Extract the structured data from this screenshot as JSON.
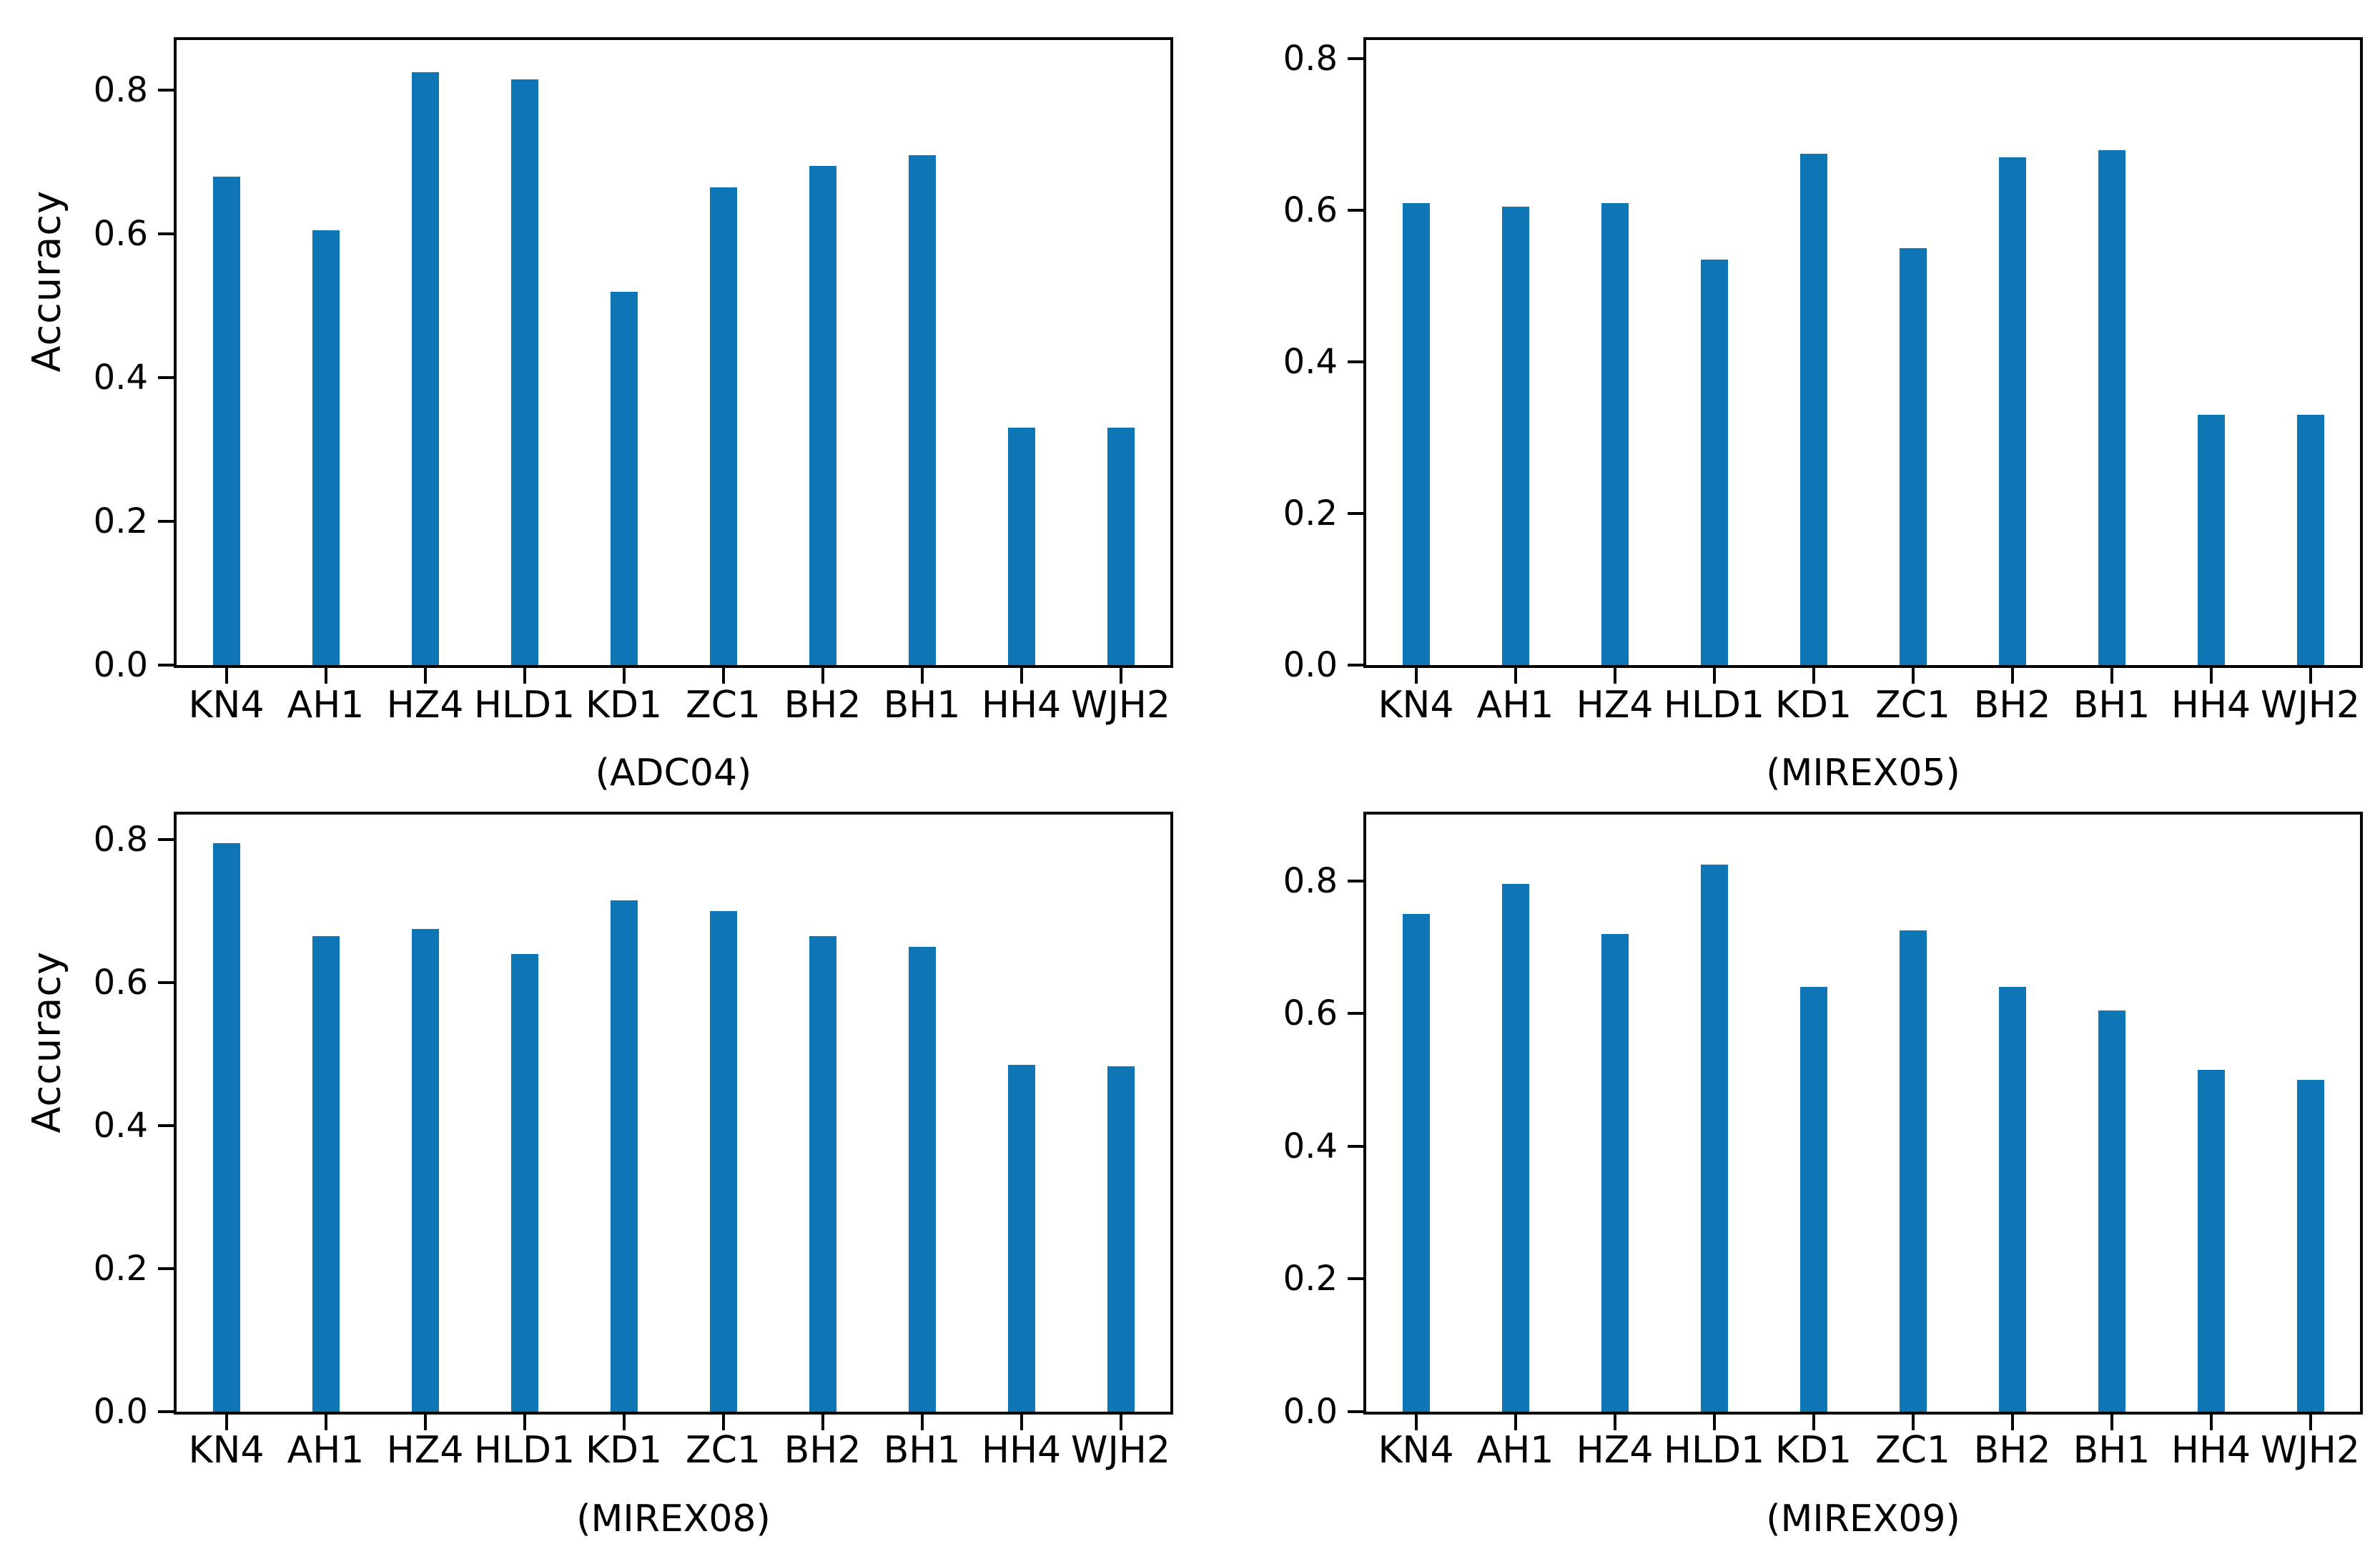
{
  "figure": {
    "background": "#ffffff",
    "bar_color": "#0e76b4",
    "axis_color": "#000000",
    "text_color": "#000000",
    "layout": "2x2 grid of bar subplots",
    "ylabel_left_column_only": "Accuracy"
  },
  "chart_data": [
    {
      "type": "bar",
      "title": "(ADC04)",
      "ylabel": "Accuracy",
      "xlabel": "",
      "categories": [
        "KN4",
        "AH1",
        "HZ4",
        "HLD1",
        "KD1",
        "ZC1",
        "BH2",
        "BH1",
        "HH4",
        "WJH2"
      ],
      "values": [
        0.68,
        0.605,
        0.825,
        0.815,
        0.52,
        0.665,
        0.695,
        0.71,
        0.33,
        0.33
      ],
      "ylim": [
        0,
        0.87
      ],
      "yticks": [
        0.0,
        0.2,
        0.4,
        0.6,
        0.8
      ],
      "ytick_labels": [
        "0.0",
        "0.2",
        "0.4",
        "0.6",
        "0.8"
      ],
      "grid": false,
      "legend": "none"
    },
    {
      "type": "bar",
      "title": "(MIREX05)",
      "ylabel": "",
      "xlabel": "",
      "categories": [
        "KN4",
        "AH1",
        "HZ4",
        "HLD1",
        "KD1",
        "ZC1",
        "BH2",
        "BH1",
        "HH4",
        "WJH2"
      ],
      "values": [
        0.61,
        0.605,
        0.61,
        0.535,
        0.675,
        0.55,
        0.67,
        0.68,
        0.33,
        0.33
      ],
      "ylim": [
        0,
        0.825
      ],
      "yticks": [
        0.0,
        0.2,
        0.4,
        0.6,
        0.8
      ],
      "ytick_labels": [
        "0.0",
        "0.2",
        "0.4",
        "0.6",
        "0.8"
      ],
      "grid": false,
      "legend": "none"
    },
    {
      "type": "bar",
      "title": "(MIREX08)",
      "ylabel": "Accuracy",
      "xlabel": "",
      "categories": [
        "KN4",
        "AH1",
        "HZ4",
        "HLD1",
        "KD1",
        "ZC1",
        "BH2",
        "BH1",
        "HH4",
        "WJH2"
      ],
      "values": [
        0.795,
        0.665,
        0.675,
        0.64,
        0.715,
        0.7,
        0.665,
        0.65,
        0.485,
        0.483
      ],
      "ylim": [
        0,
        0.835
      ],
      "yticks": [
        0.0,
        0.2,
        0.4,
        0.6,
        0.8
      ],
      "ytick_labels": [
        "0.0",
        "0.2",
        "0.4",
        "0.6",
        "0.8"
      ],
      "grid": false,
      "legend": "none"
    },
    {
      "type": "bar",
      "title": "(MIREX09)",
      "ylabel": "",
      "xlabel": "",
      "categories": [
        "KN4",
        "AH1",
        "HZ4",
        "HLD1",
        "KD1",
        "ZC1",
        "BH2",
        "BH1",
        "HH4",
        "WJH2"
      ],
      "values": [
        0.75,
        0.795,
        0.72,
        0.825,
        0.64,
        0.725,
        0.64,
        0.605,
        0.515,
        0.5
      ],
      "ylim": [
        0,
        0.9
      ],
      "yticks": [
        0.0,
        0.2,
        0.4,
        0.6,
        0.8
      ],
      "ytick_labels": [
        "0.0",
        "0.2",
        "0.4",
        "0.6",
        "0.8"
      ],
      "grid": false,
      "legend": "none"
    }
  ]
}
